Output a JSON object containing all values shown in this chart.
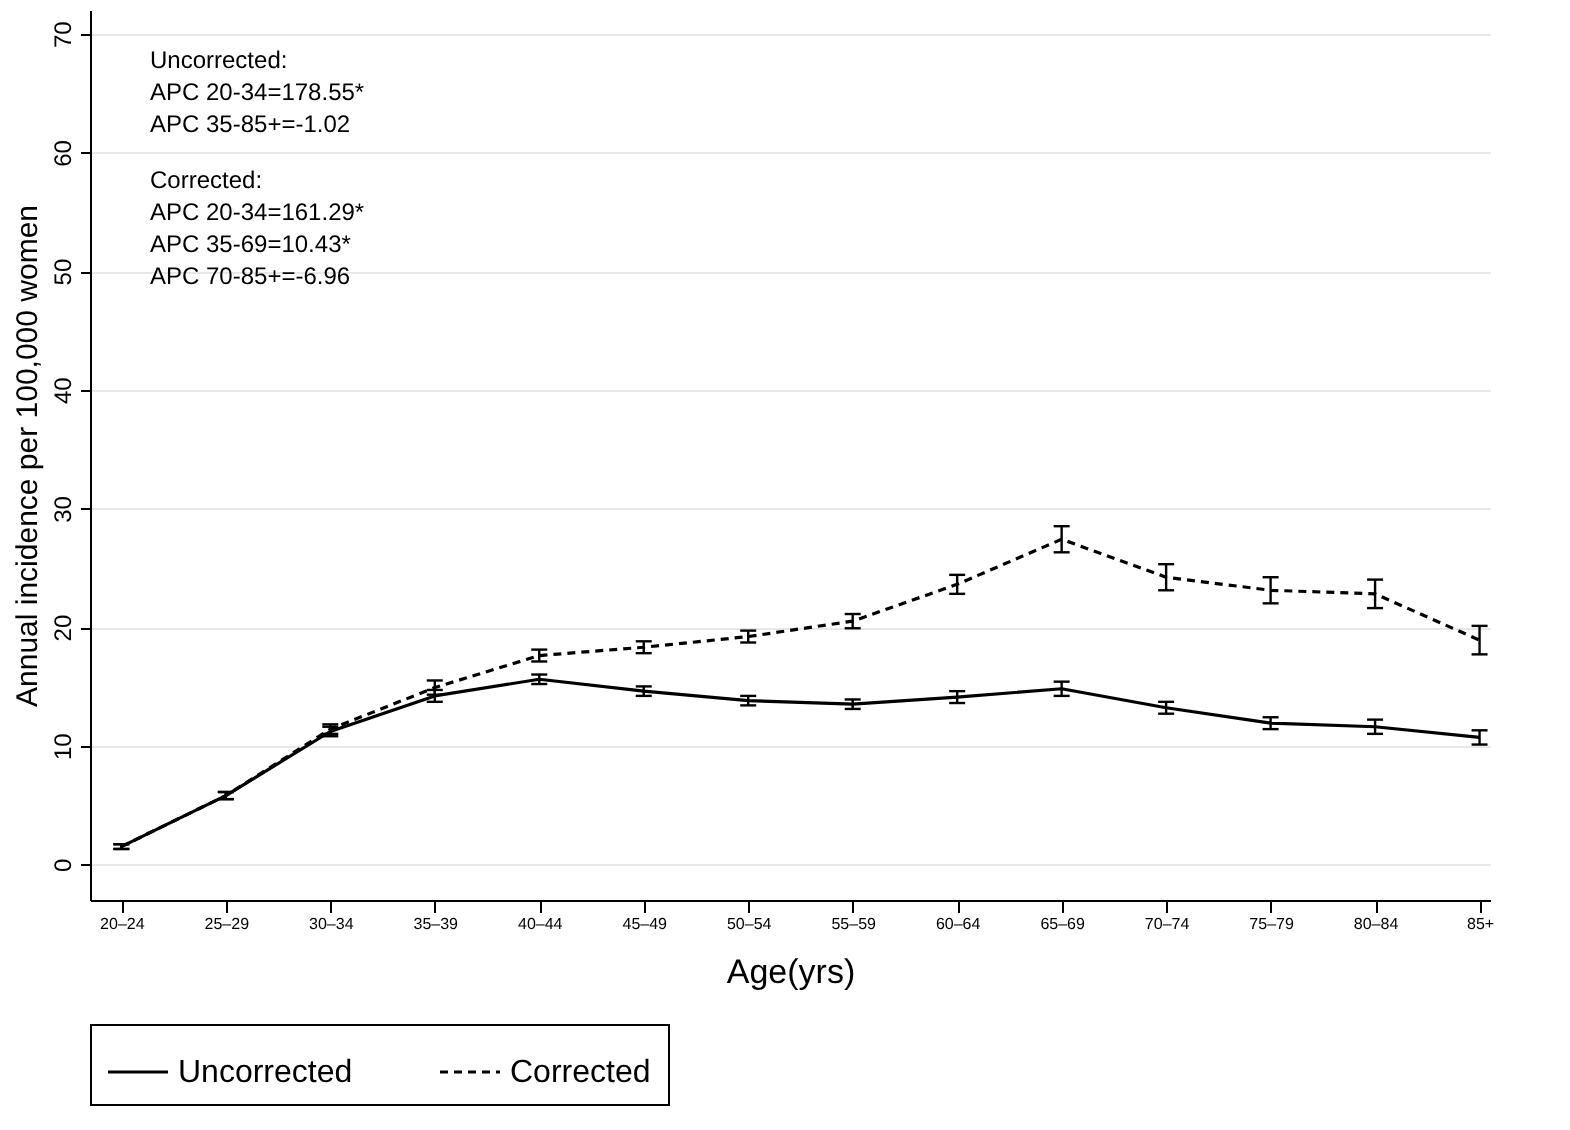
{
  "chart_data": {
    "type": "line",
    "xlabel": "Age(yrs)",
    "ylabel": "Annual incidence per 100,000 women",
    "categories": [
      "20–24",
      "25–29",
      "30–34",
      "35–39",
      "40–44",
      "45–49",
      "50–54",
      "55–59",
      "60–64",
      "65–69",
      "70–74",
      "75–79",
      "80–84",
      "85+"
    ],
    "series": [
      {
        "name": "Uncorrected",
        "color": "#000000",
        "line_style": "solid",
        "values": [
          1.5,
          5.8,
          11.2,
          14.2,
          15.6,
          14.6,
          13.8,
          13.5,
          14.1,
          14.8,
          13.2,
          11.9,
          11.6,
          10.7
        ],
        "errors": [
          0.2,
          0.3,
          0.4,
          0.5,
          0.4,
          0.4,
          0.4,
          0.4,
          0.5,
          0.6,
          0.5,
          0.5,
          0.6,
          0.6
        ]
      },
      {
        "name": "Corrected",
        "color": "#000000",
        "line_style": "dashed",
        "values": [
          1.5,
          5.8,
          11.4,
          14.9,
          17.6,
          18.3,
          19.2,
          20.5,
          23.6,
          27.4,
          24.2,
          23.1,
          22.8,
          18.9
        ],
        "errors": [
          0.2,
          0.3,
          0.4,
          0.6,
          0.5,
          0.5,
          0.5,
          0.6,
          0.8,
          1.1,
          1.1,
          1.1,
          1.2,
          1.2
        ]
      }
    ],
    "ylim": [
      -3,
      72
    ],
    "yticks": [
      0,
      10,
      20,
      30,
      40,
      50,
      60,
      70
    ],
    "grid": "y",
    "legend": "bottom",
    "marker": "none",
    "annotations": [
      "Uncorrected:\nAPC 20-34=178.55*\nAPC 35-85+=-1.02",
      "Corrected:\nAPC 20-34=161.29*\nAPC 35-69=10.43*\nAPC 70-85+=-6.96"
    ]
  }
}
